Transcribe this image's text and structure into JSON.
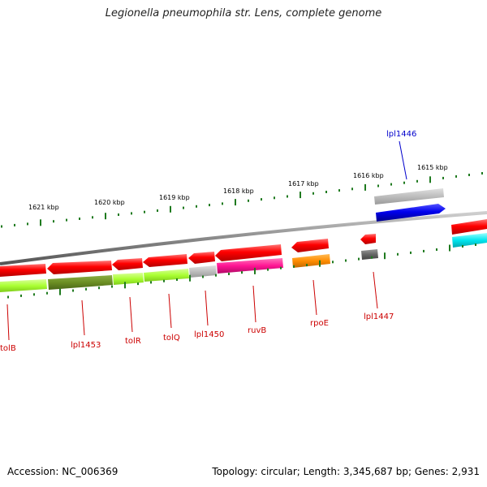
{
  "title": "Legionella pneumophila str. Lens, complete genome",
  "footer": {
    "accession": "Accession: NC_006369",
    "info": "Topology: circular; Length: 3,345,687 bp; Genes: 2,931"
  },
  "scale_labels": [
    "1615 kbp",
    "1616 kbp",
    "1617 kbp",
    "1618 kbp",
    "1619 kbp",
    "1620 kbp",
    "1621 kbp"
  ],
  "gene_labels": [
    {
      "text": "lpl1446",
      "color": "#0000cc",
      "strand": "forward"
    },
    {
      "text": "lpl1447",
      "color": "#cc0000",
      "strand": "reverse"
    },
    {
      "text": "rpoE",
      "color": "#cc0000",
      "strand": "reverse"
    },
    {
      "text": "ruvB",
      "color": "#cc0000",
      "strand": "reverse"
    },
    {
      "text": "lpl1450",
      "color": "#cc0000",
      "strand": "reverse"
    },
    {
      "text": "tolQ",
      "color": "#cc0000",
      "strand": "reverse"
    },
    {
      "text": "tolR",
      "color": "#cc0000",
      "strand": "reverse"
    },
    {
      "text": "lpl1453",
      "color": "#cc0000",
      "strand": "reverse"
    },
    {
      "text": "tolB",
      "color": "#cc0000",
      "strand": "reverse"
    }
  ],
  "colors": {
    "backbone": "#8a8a8a",
    "tick": "#1f7a1f",
    "forward_cds": "#ff0000",
    "reverse_cds": "#ff0000",
    "blue_gene": "#0000ee",
    "grey_gene": "#bdbdbd",
    "cyan_gene": "#00e5ee",
    "lime": "#aaff33",
    "olive": "#6b8e23",
    "magenta": "#ff1493",
    "orange": "#ff8c00",
    "dark_grey": "#666666"
  }
}
